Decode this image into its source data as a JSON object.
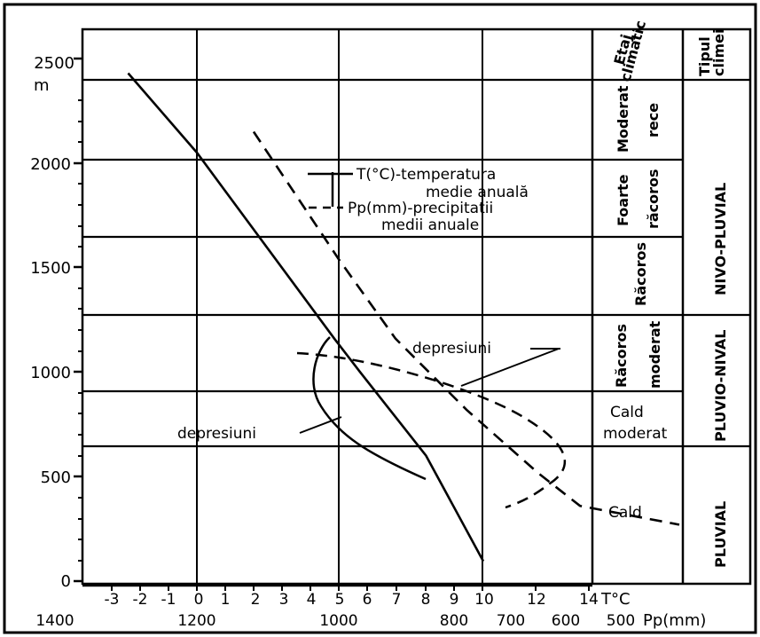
{
  "chart_data": {
    "type": "line",
    "y_axis": {
      "unit": "m",
      "ticks": [
        0,
        500,
        1000,
        1500,
        2000,
        2500
      ],
      "range": [
        0,
        2650
      ]
    },
    "x_axis_temperature": {
      "label": "T°C",
      "ticks": [
        "-3",
        "-2",
        "-1",
        "0",
        "1",
        "2",
        "3",
        "4",
        "5",
        "6",
        "7",
        "8",
        "9",
        "10",
        "12",
        "14"
      ]
    },
    "x_axis_precipitation": {
      "label": "Pp(mm)",
      "ticks": [
        "1400",
        "1200",
        "1000",
        "800",
        "700",
        "600",
        "500"
      ]
    },
    "legend": {
      "temperature": "T(°C)-temperatura medie anuală",
      "temperature_l1": "T(°C)-temperatura",
      "temperature_l2": "medie anuală",
      "precipitation": "Pp(mm)-precipitatii medii anuale",
      "precipitation_l1": "Pp(mm)-precipitatii",
      "precipitation_l2": "medii anuale"
    },
    "series": [
      {
        "name": "T(°C)-temperatura medie anuală",
        "style": "solid",
        "x_unit": "°C",
        "points": [
          [
            -2.4,
            2430
          ],
          [
            0,
            2050
          ],
          [
            4.8,
            1160
          ],
          [
            5.7,
            1000
          ],
          [
            8.0,
            600
          ],
          [
            10.0,
            95
          ]
        ]
      },
      {
        "name": "Pp(mm)-precipitatii medii anuale",
        "style": "dashed",
        "x_unit": "mm",
        "points": [
          [
            1120,
            2150
          ],
          [
            1000,
            1540
          ],
          [
            920,
            1160
          ],
          [
            820,
            820
          ],
          [
            720,
            520
          ],
          [
            660,
            360
          ],
          [
            520,
            270
          ]
        ]
      }
    ],
    "annotations": [
      {
        "text": "depresiuni",
        "kind": "precipitation-depression-loop"
      },
      {
        "text": "depresiuni",
        "kind": "temperature-depression-loop"
      }
    ],
    "zones": [
      {
        "etaj": "Moderat rece",
        "range_m": [
          2050,
          2430
        ],
        "tip": "NIVO-PLUVIAL"
      },
      {
        "etaj": "Foarte răcoros",
        "range_m": [
          1670,
          2050
        ],
        "tip": "NIVO-PLUVIAL"
      },
      {
        "etaj": "Răcoros",
        "range_m": [
          1300,
          1670
        ],
        "tip": "NIVO-PLUVIAL"
      },
      {
        "etaj": "Răcoros moderat",
        "range_m": [
          930,
          1300
        ],
        "tip": "PLUVIO-NIVAL"
      },
      {
        "etaj": "Cald moderat",
        "range_m": [
          670,
          930
        ],
        "tip": "PLUVIO-NIVAL"
      },
      {
        "etaj": "Cald",
        "range_m": [
          0,
          670
        ],
        "tip": "PLUVIAL"
      }
    ],
    "grid": true
  },
  "header": {
    "etaj_l1": "Etaj",
    "etaj_l2": "climatic",
    "tipul_l1": "Tipul",
    "tipul_l2": "climei"
  },
  "zone_labels": {
    "moderat": "Moderat",
    "rece": "rece",
    "foarte": "Foarte",
    "racoros_a": "răcoros",
    "racoros": "Răcoros",
    "racoros_b": "Răcoros",
    "moderat_b": "moderat",
    "cald_b": "Cald",
    "moderat_c": "moderat",
    "cald": "Cald"
  },
  "type_labels": {
    "nivo": "NIVO-PLUVIAL",
    "pluvio": "PLUVIO-NIVAL",
    "pluvial": "PLUVIAL"
  },
  "annotations": {
    "depresiuni_upper": "depresiuni",
    "depresiuni_lower": "depresiuni"
  },
  "colors": {
    "ink": "#000000",
    "background": "#ffffff"
  }
}
